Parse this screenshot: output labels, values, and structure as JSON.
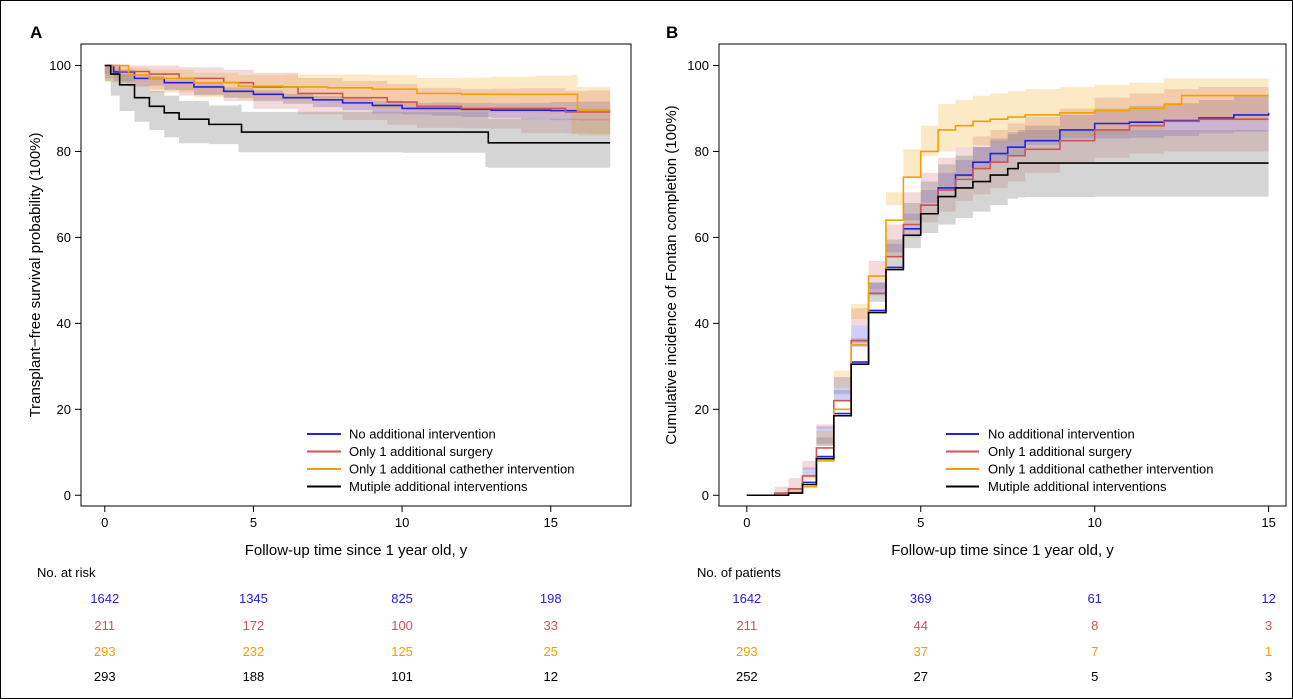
{
  "panels": [
    {
      "letter": "A",
      "risk_label": "No. at risk"
    },
    {
      "letter": "B",
      "risk_label": "No. of patients"
    }
  ],
  "colors": {
    "No additional intervention": "#2222dd",
    "Only 1 additional surgery": "#cc5555",
    "Only 1 additional cathether intervention": "#f0a000",
    "Mutiple additional interventions": "#000000"
  },
  "chart_data": [
    {
      "type": "line",
      "panel": "A",
      "xlabel": "Follow-up time since 1 year old, y",
      "ylabel": "Transplant−free survival probability (100%)",
      "xlim": [
        -0.8,
        17.7
      ],
      "ylim": [
        -2.5,
        105
      ],
      "xticks": [
        0,
        5,
        10,
        15
      ],
      "yticks": [
        0,
        20,
        40,
        60,
        80,
        100
      ],
      "legend_position": "bottom-right",
      "series": [
        {
          "name": "No additional intervention",
          "color": "#2222dd",
          "x": [
            0,
            0.3,
            1,
            2,
            3,
            4,
            5,
            6,
            7,
            8,
            9,
            10,
            11,
            12,
            13,
            14,
            15,
            16,
            17
          ],
          "y": [
            100,
            98.5,
            97,
            96,
            95,
            94,
            93.3,
            92.5,
            92,
            91.3,
            90.7,
            90,
            90,
            89.8,
            89.6,
            89.6,
            89.5,
            89.5,
            89.5
          ],
          "lower": [
            100,
            98,
            96.3,
            95.3,
            94.2,
            93.2,
            92.5,
            91.7,
            91.1,
            90.3,
            89.6,
            88.8,
            88.6,
            88.3,
            88,
            87.8,
            87.5,
            87.3,
            87.2
          ],
          "upper": [
            100,
            99,
            97.6,
            96.7,
            95.8,
            94.9,
            94.2,
            93.4,
            92.9,
            92.3,
            91.8,
            91.3,
            91.4,
            91.3,
            91.2,
            91.3,
            91.5,
            91.6,
            91.7
          ]
        },
        {
          "name": "Only 1 additional surgery",
          "color": "#cc5555",
          "x": [
            0,
            0.5,
            1.5,
            2.5,
            4,
            5,
            6.5,
            8,
            9.5,
            10.5,
            12,
            13,
            14,
            15.5,
            16.3,
            17
          ],
          "y": [
            100,
            98.6,
            98,
            97,
            96,
            95,
            93.5,
            92.5,
            91.5,
            90.5,
            90,
            90,
            90,
            89.2,
            89.2,
            89.2
          ],
          "lower": [
            100,
            97,
            95.8,
            94.4,
            93,
            91.7,
            89.9,
            88.6,
            87.3,
            86.2,
            85.5,
            85.4,
            85.3,
            84.3,
            84.2,
            84.1
          ],
          "upper": [
            100,
            100,
            100,
            99.6,
            99,
            98.3,
            97.1,
            96.4,
            95.7,
            94.8,
            94.5,
            94.6,
            94.7,
            94.1,
            94.2,
            94.3
          ]
        },
        {
          "name": "Only 1 additional cathether intervention",
          "color": "#f0a000",
          "x": [
            0,
            0.8,
            1.5,
            3,
            4.5,
            6,
            7.5,
            9,
            10.5,
            12,
            13,
            14.5,
            15.7,
            15.9,
            17
          ],
          "y": [
            100,
            97.8,
            97,
            96,
            95.2,
            95,
            94.8,
            94.5,
            93.5,
            93.3,
            93.3,
            93.3,
            93.3,
            89.5,
            89.5
          ],
          "lower": [
            100,
            96.1,
            95,
            93.7,
            92.6,
            92.1,
            91.7,
            91.2,
            89.9,
            89.4,
            89.2,
            89,
            88.8,
            84,
            83.7
          ],
          "upper": [
            100,
            99.5,
            99,
            98.3,
            97.8,
            97.9,
            97.9,
            97.8,
            97.1,
            97.2,
            97.4,
            97.6,
            97.8,
            95,
            95.3
          ]
        },
        {
          "name": "Mutiple additional interventions",
          "color": "#000000",
          "x": [
            0,
            0.2,
            0.5,
            1,
            1.5,
            2,
            2.5,
            3.5,
            4.5,
            4.6,
            6,
            8,
            10,
            12.8,
            12.9,
            17
          ],
          "y": [
            100,
            98,
            95.5,
            92.5,
            90.5,
            89,
            87.5,
            86.3,
            86.3,
            84.5,
            84.5,
            84.5,
            84.5,
            84.5,
            82,
            82
          ],
          "lower": [
            100,
            96.4,
            93,
            89.4,
            86.9,
            85,
            83.3,
            81.9,
            81.7,
            79.8,
            79.8,
            79.8,
            79.8,
            79.7,
            76.4,
            76.2
          ],
          "upper": [
            100,
            99.6,
            98,
            95.6,
            94.1,
            93,
            91.7,
            90.7,
            90.9,
            89.2,
            89.2,
            89.2,
            89.2,
            89.3,
            87.6,
            87.8
          ]
        }
      ],
      "risk_table": {
        "x": [
          0,
          5,
          10,
          15
        ],
        "rows": [
          [
            "1642",
            "1345",
            "825",
            "198"
          ],
          [
            "211",
            "172",
            "100",
            "33"
          ],
          [
            "293",
            "232",
            "125",
            "25"
          ],
          [
            "293",
            "188",
            "101",
            "12"
          ]
        ]
      }
    },
    {
      "type": "line",
      "panel": "B",
      "xlabel": "Follow-up time since 1 year old, y",
      "ylabel": "Cumulative incidence of Fontan completion (100%)",
      "xlim": [
        -0.8,
        15.5
      ],
      "ylim": [
        -2.5,
        105
      ],
      "xticks": [
        0,
        5,
        10,
        15
      ],
      "yticks": [
        0,
        20,
        40,
        60,
        80,
        100
      ],
      "legend_position": "bottom-right",
      "series": [
        {
          "name": "No additional intervention",
          "color": "#2222dd",
          "x": [
            0,
            0.8,
            1.2,
            1.6,
            2,
            2.5,
            3,
            3.5,
            4,
            4.5,
            5,
            5.5,
            6,
            6.5,
            7,
            7.5,
            8,
            9,
            10,
            11,
            12,
            13,
            14,
            15
          ],
          "y": [
            0,
            0,
            0.5,
            3,
            9,
            19,
            31,
            43,
            53,
            62,
            67.5,
            71.5,
            74.5,
            77.5,
            79.5,
            81,
            82.5,
            85,
            86.5,
            86.8,
            87.2,
            87.8,
            88.5,
            89
          ],
          "lower": [
            0,
            0,
            0,
            1.5,
            6.5,
            16,
            27.5,
            39.5,
            49.5,
            58.5,
            64,
            68,
            71,
            74,
            76,
            77.5,
            79,
            81.5,
            83,
            83,
            83.2,
            83.6,
            84.2,
            84.6
          ],
          "upper": [
            0,
            0.5,
            1.5,
            4.5,
            11.5,
            22,
            34.5,
            46.5,
            56.5,
            65.5,
            71,
            75,
            78,
            81,
            83,
            84.5,
            86,
            88.5,
            90,
            90.6,
            91.2,
            92,
            92.8,
            93.4
          ]
        },
        {
          "name": "Only 1 additional surgery",
          "color": "#cc5555",
          "x": [
            0,
            0.8,
            1.2,
            1.6,
            2,
            2.5,
            3,
            3.5,
            4,
            4.5,
            5,
            5.5,
            6,
            6.5,
            7,
            7.5,
            8,
            9,
            10,
            11,
            12,
            13,
            14,
            15
          ],
          "y": [
            0,
            0.5,
            1.5,
            4.5,
            11,
            22,
            36,
            47,
            55.5,
            63,
            67.5,
            71,
            73.5,
            76,
            77.5,
            79,
            80.5,
            82.5,
            85,
            86,
            87,
            87.5,
            87.5,
            87.5
          ],
          "lower": [
            0,
            0,
            0,
            1.5,
            6,
            15.5,
            28.5,
            39.5,
            48,
            55.5,
            60,
            63.5,
            66,
            68.5,
            70,
            71.5,
            73,
            75,
            77.5,
            78.5,
            79.5,
            80,
            80,
            80
          ],
          "upper": [
            0,
            2,
            4,
            8,
            16.5,
            28.5,
            43.5,
            54.5,
            63,
            70.5,
            75,
            78.5,
            81,
            83.5,
            85,
            86.5,
            88,
            90,
            92.5,
            93.5,
            94.5,
            95,
            95,
            95
          ]
        },
        {
          "name": "Only 1 additional cathether intervention",
          "color": "#f0a000",
          "x": [
            0,
            0.8,
            1.2,
            1.6,
            2,
            2.5,
            3,
            3.5,
            4,
            4.5,
            5,
            5.5,
            6,
            6.5,
            7,
            7.5,
            8,
            9,
            10,
            11,
            12,
            12.5,
            13,
            14,
            15
          ],
          "y": [
            0,
            0,
            0.5,
            2,
            8,
            20,
            35,
            51,
            64,
            74,
            80,
            85,
            86,
            87,
            87.5,
            88,
            88.5,
            89,
            89.5,
            90,
            91,
            93,
            93,
            93,
            93
          ],
          "lower": [
            0,
            0,
            0,
            0.5,
            4.5,
            15,
            29,
            44.5,
            57.5,
            67.5,
            74,
            79,
            80,
            81,
            81.5,
            82,
            82.5,
            83,
            83.5,
            84,
            85,
            87,
            87,
            87,
            87
          ],
          "upper": [
            0,
            0.5,
            1.5,
            3.5,
            11.5,
            25,
            41,
            57.5,
            70.5,
            80.5,
            86,
            91,
            92,
            93,
            93.5,
            94,
            94.5,
            95,
            95.5,
            96,
            97,
            97,
            97,
            97,
            97
          ]
        },
        {
          "name": "Mutiple additional interventions",
          "color": "#000000",
          "x": [
            0,
            0.8,
            1.2,
            1.6,
            2,
            2.5,
            3,
            3.5,
            4,
            4.5,
            5,
            5.5,
            6,
            6.5,
            7,
            7.5,
            7.8,
            8,
            9,
            10,
            11,
            12,
            13,
            14,
            15
          ],
          "y": [
            0,
            0,
            0.5,
            2.5,
            8.5,
            18.5,
            30.5,
            42.5,
            52.5,
            60.5,
            65.5,
            69.5,
            71.5,
            73,
            74.5,
            76,
            77.3,
            77.3,
            77.3,
            77.3,
            77.3,
            77.3,
            77.3,
            77.3,
            77.3
          ],
          "lower": [
            0,
            0,
            0,
            0.5,
            5,
            13.5,
            24.5,
            35.5,
            45,
            52.5,
            57.5,
            61,
            63,
            64.5,
            66,
            67.5,
            69,
            69.3,
            69.4,
            69.4,
            69.5,
            69.5,
            69.5,
            69.5,
            69.5
          ],
          "upper": [
            0,
            0.5,
            1.5,
            5,
            12,
            23.5,
            36.5,
            49.5,
            59.5,
            68,
            73,
            77,
            79,
            81,
            82.5,
            84,
            85,
            85,
            85,
            85,
            85,
            85,
            85,
            85,
            85
          ]
        }
      ],
      "risk_table": {
        "x": [
          0,
          5,
          10,
          15
        ],
        "rows": [
          [
            "1642",
            "369",
            "61",
            "12"
          ],
          [
            "211",
            "44",
            "8",
            "3"
          ],
          [
            "293",
            "37",
            "7",
            "1"
          ],
          [
            "252",
            "27",
            "5",
            "3"
          ]
        ]
      }
    }
  ]
}
